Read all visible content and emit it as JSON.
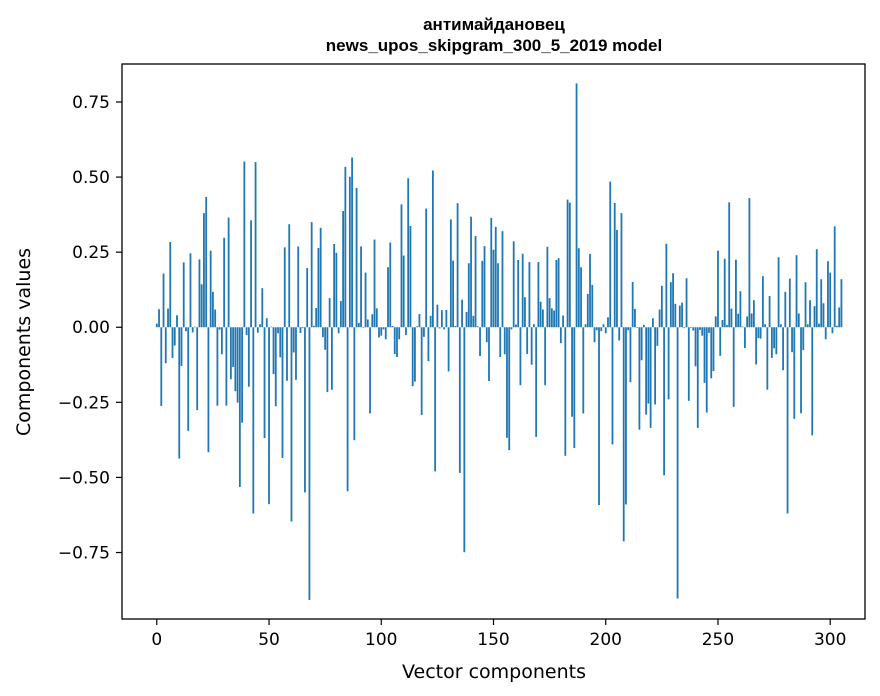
{
  "chart_data": {
    "type": "bar",
    "title": "антимайдановец",
    "subtitle": "news_upos_skipgram_300_5_2019 model",
    "xlabel": "Vector components",
    "ylabel": "Components values",
    "xlim": [
      -15.5,
      315.5
    ],
    "ylim": [
      -0.9714,
      0.8765
    ],
    "xticks": [
      0,
      50,
      100,
      150,
      200,
      250,
      300
    ],
    "yticks": [
      -0.75,
      -0.5,
      -0.25,
      0.0,
      0.25,
      0.5,
      0.75
    ],
    "yticklabels": [
      "−0.75",
      "−0.50",
      "−0.25",
      "0.00",
      "0.25",
      "0.50",
      "0.75"
    ],
    "bar_color": "#1f77b4",
    "grid": false,
    "values": [
      0.012,
      0.06,
      -0.262,
      0.179,
      -0.12,
      0.062,
      0.284,
      -0.102,
      -0.061,
      0.04,
      -0.437,
      -0.129,
      0.216,
      -0.013,
      -0.345,
      0.246,
      -0.017,
      0.002,
      -0.276,
      0.226,
      0.143,
      0.38,
      0.434,
      -0.416,
      0.255,
      0.118,
      0.059,
      -0.261,
      -0.008,
      -0.09,
      0.298,
      -0.261,
      0.365,
      -0.173,
      -0.132,
      -0.213,
      -0.251,
      -0.532,
      -0.318,
      0.552,
      -0.026,
      -0.198,
      0.356,
      -0.62,
      0.55,
      -0.018,
      0.01,
      0.13,
      -0.369,
      0.03,
      -0.589,
      0.002,
      -0.156,
      -0.263,
      -0.02,
      -0.1,
      -0.435,
      0.266,
      -0.178,
      0.343,
      -0.647,
      -0.084,
      -0.175,
      0.269,
      -0.019,
      -0.003,
      -0.55,
      0.197,
      -0.908,
      0.35,
      0.005,
      0.064,
      0.264,
      0.331,
      -0.033,
      -0.075,
      -0.216,
      0.097,
      -0.208,
      0.277,
      0.248,
      -0.02,
      0.087,
      0.387,
      0.534,
      -0.546,
      0.501,
      0.565,
      -0.376,
      0.464,
      0.014,
      0.269,
      0.001,
      0.182,
      0.026,
      -0.287,
      0.043,
      0.292,
      0.063,
      -0.034,
      -0.028,
      -0.007,
      -0.04,
      0.2,
      0.282,
      0.004,
      -0.089,
      -0.099,
      -0.04,
      0.409,
      0.239,
      -0.026,
      0.496,
      0.337,
      -0.196,
      -0.181,
      0.003,
      0.044,
      -0.292,
      -0.032,
      0.395,
      -0.113,
      0.038,
      0.522,
      -0.48,
      0.075,
      -0.004,
      0.057,
      -0.007,
      0.058,
      -0.147,
      0.359,
      0.222,
      0.004,
      0.413,
      -0.485,
      0.092,
      -0.749,
      0.051,
      0.213,
      0.368,
      0.038,
      0.304,
      0.003,
      -0.096,
      0.221,
      0.27,
      -0.05,
      -0.179,
      0.364,
      0.258,
      0.334,
      0.213,
      -0.099,
      0.32,
      -0.09,
      -0.368,
      -0.409,
      -0.007,
      0.286,
      0.009,
      0.224,
      -0.193,
      0.245,
      0.1,
      -0.089,
      0.217,
      -0.125,
      0.01,
      -0.365,
      0.217,
      0.085,
      0.059,
      -0.193,
      0.268,
      0.097,
      0.063,
      0.056,
      0.224,
      0.23,
      -0.053,
      0.039,
      -0.428,
      0.425,
      0.415,
      -0.298,
      -0.402,
      0.812,
      0.263,
      0.2,
      -0.287,
      0.01,
      0.111,
      0.244,
      0.141,
      -0.05,
      -0.01,
      -0.592,
      -0.013,
      0.01,
      -0.02,
      0.033,
      0.485,
      -0.39,
      0.414,
      0.324,
      -0.044,
      0.38,
      -0.713,
      -0.59,
      -0.01,
      -0.183,
      0.151,
      0.061,
      0.0,
      -0.341,
      -0.11,
      0.008,
      -0.291,
      -0.254,
      -0.335,
      0.03,
      -0.257,
      -0.062,
      0.059,
      0.138,
      -0.493,
      0.278,
      -0.24,
      0.15,
      0.18,
      0.078,
      -0.903,
      0.072,
      0.082,
      -0.003,
      0.163,
      -0.245,
      0.0,
      -0.011,
      -0.13,
      -0.335,
      -0.009,
      -0.028,
      -0.185,
      -0.284,
      -0.019,
      -0.17,
      -0.146,
      0.036,
      0.255,
      -0.095,
      0.024,
      0.228,
      0.007,
      0.416,
      0.062,
      -0.265,
      0.225,
      0.045,
      0.12,
      0.002,
      -0.069,
      0.036,
      0.43,
      0.046,
      0.09,
      -0.124,
      -0.036,
      -0.038,
      0.17,
      0.01,
      -0.208,
      0.104,
      -0.102,
      -0.07,
      -0.09,
      0.233,
      0.01,
      -0.143,
      0.118,
      -0.62,
      0.162,
      -0.083,
      -0.305,
      0.24,
      0.046,
      -0.286,
      -0.076,
      0.15,
      0.01,
      0.09,
      -0.36,
      0.07,
      0.26,
      0.012,
      0.16,
      0.08,
      -0.04,
      0.22,
      0.182,
      -0.02,
      0.336,
      0.005,
      0.066,
      0.16
    ]
  }
}
